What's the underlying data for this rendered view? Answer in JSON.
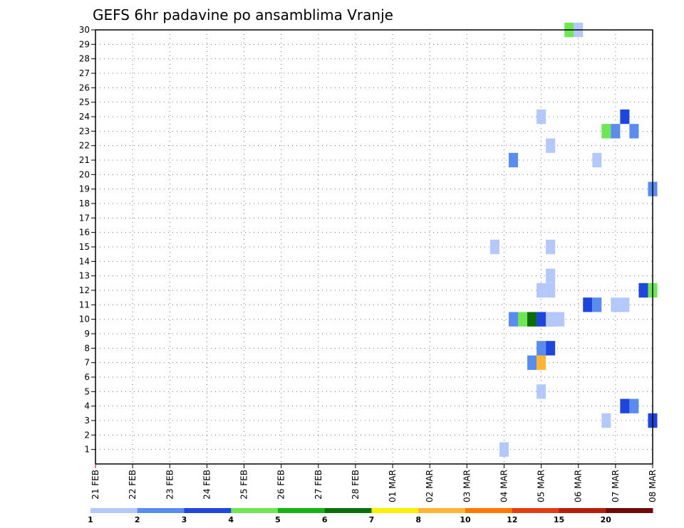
{
  "chart_data": {
    "type": "heatmap",
    "title": "GEFS 6hr padavine po ansamblima Vranje",
    "xlabel": "",
    "ylabel": "",
    "x_ticks": [
      "21 FEB",
      "22 FEB",
      "23 FEB",
      "24 FEB",
      "25 FEB",
      "26 FEB",
      "27 FEB",
      "28 FEB",
      "01 MAR",
      "02 MAR",
      "03 MAR",
      "04 MAR",
      "05 MAR",
      "06 MAR",
      "07 MAR",
      "08 MAR"
    ],
    "y_ticks": [
      1,
      2,
      3,
      4,
      5,
      6,
      7,
      8,
      9,
      10,
      11,
      12,
      13,
      14,
      15,
      16,
      17,
      18,
      19,
      20,
      21,
      22,
      23,
      24,
      25,
      26,
      27,
      28,
      29,
      30
    ],
    "xlim_days": [
      0,
      15
    ],
    "ylim": [
      0,
      30
    ],
    "grid": "dotted",
    "legend": {
      "placement": "bottom",
      "colors": [
        "#b4c8fa",
        "#5a8cf0",
        "#1e46dc",
        "#6ee656",
        "#14b414",
        "#0a6e0a",
        "#fff000",
        "#ffb432",
        "#ff7800",
        "#e63c14",
        "#b41e0a",
        "#6e0a0a"
      ],
      "labels": [
        "1",
        "2",
        "3",
        "4",
        "5",
        "6",
        "7",
        "8",
        "10",
        "12",
        "15",
        "20"
      ]
    },
    "cells": [
      {
        "day": 12.75,
        "member": 30,
        "color": "#6ee656"
      },
      {
        "day": 13.0,
        "member": 30,
        "color": "#b4c8fa"
      },
      {
        "day": 12.0,
        "member": 24,
        "color": "#b4c8fa"
      },
      {
        "day": 14.25,
        "member": 24,
        "color": "#1e46dc"
      },
      {
        "day": 13.75,
        "member": 23,
        "color": "#6ee656"
      },
      {
        "day": 14.0,
        "member": 23,
        "color": "#5a8cf0"
      },
      {
        "day": 14.5,
        "member": 23,
        "color": "#5a8cf0"
      },
      {
        "day": 12.25,
        "member": 22,
        "color": "#b4c8fa"
      },
      {
        "day": 11.25,
        "member": 21,
        "color": "#5a8cf0"
      },
      {
        "day": 13.5,
        "member": 21,
        "color": "#b4c8fa"
      },
      {
        "day": 15.0,
        "member": 19,
        "color": "#5a8cf0"
      },
      {
        "day": 10.75,
        "member": 15,
        "color": "#b4c8fa"
      },
      {
        "day": 12.25,
        "member": 15,
        "color": "#b4c8fa"
      },
      {
        "day": 12.25,
        "member": 13,
        "color": "#b4c8fa"
      },
      {
        "day": 14.75,
        "member": 12,
        "color": "#1e46dc"
      },
      {
        "day": 15.0,
        "member": 12,
        "color": "#6ee656"
      },
      {
        "day": 12.0,
        "member": 12,
        "color": "#b4c8fa"
      },
      {
        "day": 12.25,
        "member": 12,
        "color": "#b4c8fa"
      },
      {
        "day": 13.25,
        "member": 11,
        "color": "#1e46dc"
      },
      {
        "day": 13.5,
        "member": 11,
        "color": "#5a8cf0"
      },
      {
        "day": 14.0,
        "member": 11,
        "color": "#b4c8fa"
      },
      {
        "day": 14.25,
        "member": 11,
        "color": "#b4c8fa"
      },
      {
        "day": 11.75,
        "member": 10,
        "color": "#b4c8fa"
      },
      {
        "day": 12.0,
        "member": 10,
        "color": "#b4c8fa"
      },
      {
        "day": 12.25,
        "member": 10,
        "color": "#5a8cf0"
      },
      {
        "day": 11.25,
        "member": 10,
        "color": "#5a8cf0"
      },
      {
        "day": 11.5,
        "member": 10,
        "color": "#6ee656"
      },
      {
        "day": 11.75,
        "member": 10,
        "color": "#0a6e0a"
      },
      {
        "day": 12.0,
        "member": 10,
        "color": "#1e46dc"
      },
      {
        "day": 12.25,
        "member": 10,
        "color": "#b4c8fa"
      },
      {
        "day": 12.5,
        "member": 10,
        "color": "#b4c8fa"
      },
      {
        "day": 12.0,
        "member": 8,
        "color": "#5a8cf0"
      },
      {
        "day": 12.25,
        "member": 8,
        "color": "#1e46dc"
      },
      {
        "day": 11.75,
        "member": 7,
        "color": "#5a8cf0"
      },
      {
        "day": 12.0,
        "member": 7,
        "color": "#ffb432"
      },
      {
        "day": 12.0,
        "member": 5,
        "color": "#b4c8fa"
      },
      {
        "day": 14.25,
        "member": 4,
        "color": "#1e46dc"
      },
      {
        "day": 14.5,
        "member": 4,
        "color": "#5a8cf0"
      },
      {
        "day": 13.75,
        "member": 3,
        "color": "#b4c8fa"
      },
      {
        "day": 15.0,
        "member": 3,
        "color": "#1e46dc"
      },
      {
        "day": 11.0,
        "member": 1,
        "color": "#b4c8fa"
      }
    ]
  }
}
